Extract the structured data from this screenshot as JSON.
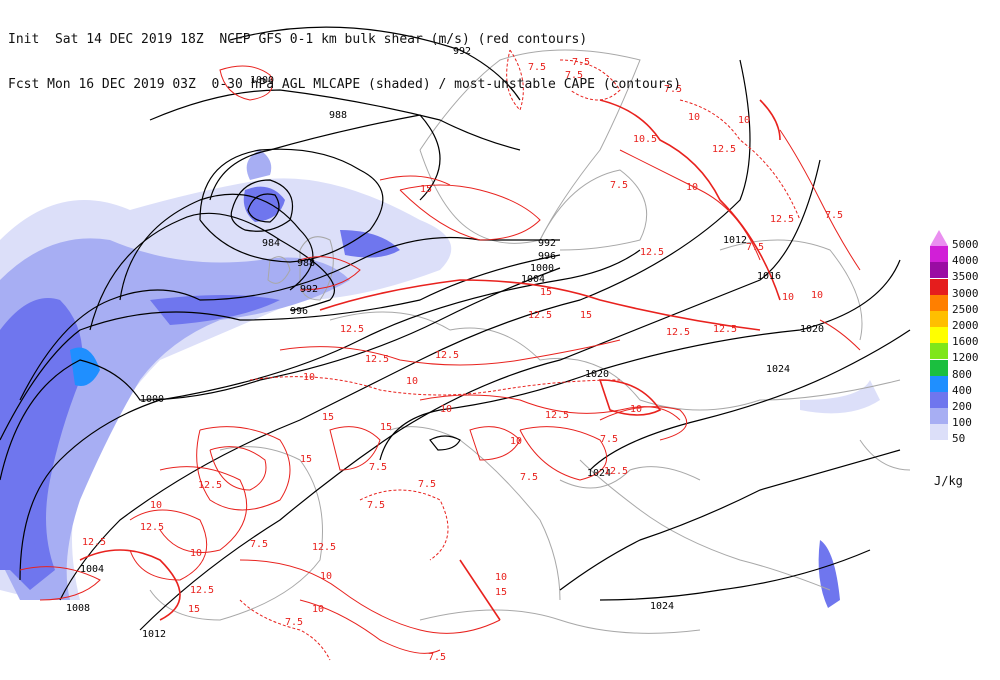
{
  "header": {
    "line1": "Init  Sat 14 DEC 2019 18Z  NCEP GFS 0-1 km bulk shear (m/s) (red contours)",
    "line2": "Fcst Mon 16 DEC 2019 03Z  0-30 hPa AGL MLCAPE (shaded) / most-unstable CAPE (contours)"
  },
  "legend": {
    "units": "J/kg",
    "levels": [
      {
        "label": "5000",
        "color": "#ea8ff0"
      },
      {
        "label": "4000",
        "color": "#d11fd7"
      },
      {
        "label": "3500",
        "color": "#9a0ca3"
      },
      {
        "label": "3000",
        "color": "#e51d1d"
      },
      {
        "label": "2500",
        "color": "#ff7f00"
      },
      {
        "label": "2000",
        "color": "#ffbf00"
      },
      {
        "label": "1600",
        "color": "#ffff00"
      },
      {
        "label": "1200",
        "color": "#7fe61a"
      },
      {
        "label": "800",
        "color": "#1bbf3f"
      },
      {
        "label": "400",
        "color": "#1f8fff"
      },
      {
        "label": "200",
        "color": "#6f76ee"
      },
      {
        "label": "100",
        "color": "#a7aef3"
      },
      {
        "label": "50",
        "color": "#dcdff9"
      }
    ]
  },
  "isobar_labels": [
    "992",
    "1000",
    "988",
    "984",
    "988",
    "992",
    "996",
    "992",
    "996",
    "1000",
    "1004",
    "1012",
    "1016",
    "1020",
    "1020",
    "1024",
    "1024",
    "1000",
    "1004",
    "1008",
    "1012",
    "1024"
  ],
  "shear_labels": [
    "7.5",
    "7.5",
    "7.5",
    "7.5",
    "7.5",
    "10",
    "10",
    "10.5",
    "12.5",
    "12.5",
    "12.5",
    "12.5",
    "10",
    "12.5",
    "7.5",
    "10",
    "15",
    "12.5",
    "12.5",
    "15",
    "12.5",
    "15",
    "15",
    "10",
    "12.5",
    "10",
    "7.5",
    "7.5",
    "10",
    "15",
    "12.5",
    "12.5",
    "10",
    "12.5",
    "12.5",
    "7.5",
    "10",
    "7.5",
    "10",
    "12.5",
    "7.5",
    "10",
    "15",
    "12.5",
    "15",
    "10",
    "10",
    "15",
    "10",
    "7.5",
    "7.5",
    "7.5",
    "7.5",
    "10",
    "12.5"
  ],
  "colors": {
    "isobar": "#000000",
    "shear": "#e8221e",
    "coast": "#a8a8a8",
    "cape_light": "#dcdff9",
    "cape_mid": "#a7aef3",
    "cape_dark": "#6f76ee",
    "cape_blue": "#1f8fff"
  }
}
